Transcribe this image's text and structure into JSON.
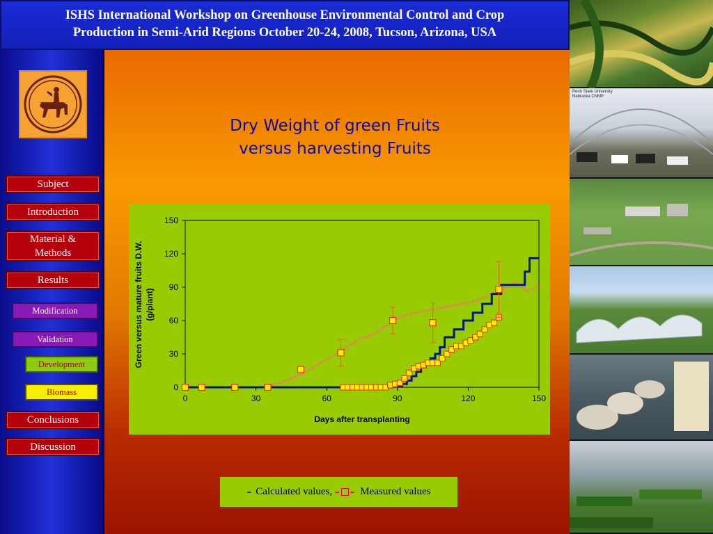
{
  "header": {
    "line1": "ISHS International Workshop on Greenhouse Environmental Control and Crop",
    "line2": "Production in Semi-Arid Regions October 20-24, 2008, Tucson, Arizona, USA"
  },
  "sidebar": {
    "items": [
      {
        "label": "Subject"
      },
      {
        "label": "Introduction"
      },
      {
        "label": "Material &"
      },
      {
        "label": "Methods"
      },
      {
        "label": "Results"
      },
      {
        "label": "Modification"
      },
      {
        "label": "Validation"
      },
      {
        "label": "Development"
      },
      {
        "label": "Biomass"
      },
      {
        "label": "Conclusions"
      },
      {
        "label": "Discussion"
      }
    ]
  },
  "slide": {
    "title_line1": "Dry Weight of green Fruits",
    "title_line2": "versus harvesting Fruits"
  },
  "legend": {
    "calculated_marker": "-",
    "calculated_label": "Calculated values,",
    "measured_marker_left": "-",
    "measured_marker_right": "-",
    "measured_label": "Measured values"
  },
  "photos": {
    "caption_line1": "Penn State University",
    "caption_line2": "Nebraska CNMP"
  },
  "colors": {
    "calculated_line": "#001a7a",
    "green_fruit_line": "#ff6688",
    "measured_marker_fill": "#ffee00",
    "measured_marker_edge": "#e03000",
    "error_bar": "#e86a20",
    "plot_bg": "#99cc00"
  },
  "chart_data": {
    "type": "line",
    "title": "",
    "xlabel": "Days after transplanting",
    "ylabel_line1": "Green versus mature fruits D.W.",
    "ylabel_line2": "(g/plant)",
    "xlim": [
      0,
      150
    ],
    "ylim": [
      0,
      150
    ],
    "xticks": [
      0,
      30,
      60,
      90,
      120,
      150
    ],
    "yticks": [
      0,
      30,
      60,
      90,
      120,
      150
    ],
    "x_tick_labels": [
      "0",
      "30",
      "60",
      "90",
      "120",
      "150"
    ],
    "y_tick_labels": [
      "0",
      "30",
      "60",
      "90",
      "120",
      "150"
    ],
    "grid": false,
    "series": [
      {
        "role": "calculated_mature",
        "style": "step",
        "x": [
          0,
          68,
          88,
          92,
          94,
          96,
          98,
          100,
          102,
          104,
          106,
          108,
          110,
          114,
          118,
          122,
          126,
          130,
          134,
          144,
          146,
          150
        ],
        "y": [
          0,
          0,
          1,
          3,
          6,
          10,
          14,
          18,
          22,
          26,
          30,
          36,
          45,
          52,
          60,
          67,
          75,
          84,
          92,
          104,
          116,
          116
        ]
      },
      {
        "role": "calculated_green",
        "style": "dotted",
        "x": [
          0,
          5,
          10,
          15,
          20,
          25,
          30,
          35,
          40,
          45,
          50,
          55,
          60,
          65,
          70,
          75,
          80,
          85,
          90,
          95,
          100,
          105,
          110,
          115,
          120,
          125,
          130,
          135,
          140,
          145,
          150
        ],
        "y": [
          0,
          0,
          0,
          0,
          0,
          0,
          0,
          1,
          4,
          8,
          13,
          19,
          25,
          31,
          38,
          44,
          48,
          55,
          62,
          66,
          68,
          70,
          72,
          74,
          76,
          79,
          84,
          88,
          95,
          86,
          92
        ]
      },
      {
        "role": "measured_green",
        "style": "marker-errorbar",
        "x": [
          0,
          7,
          21,
          35,
          49,
          66,
          88,
          105,
          133
        ],
        "y": [
          0,
          0,
          0,
          0,
          16,
          31,
          60,
          58,
          88
        ],
        "err": [
          0,
          0,
          0,
          0,
          2,
          12,
          12,
          18,
          25
        ]
      },
      {
        "role": "measured_mature",
        "style": "marker",
        "x": [
          67,
          69,
          71,
          73,
          75,
          77,
          79,
          81,
          83,
          85,
          87,
          89,
          91,
          93,
          95,
          97,
          99,
          101,
          103,
          105,
          107,
          109,
          111,
          113,
          115,
          117,
          119,
          121,
          123,
          125,
          127,
          129,
          131,
          133
        ],
        "y": [
          0,
          0,
          0,
          0,
          0,
          0,
          0,
          0,
          0,
          0,
          2,
          3,
          4,
          8,
          13,
          17,
          19,
          20,
          22,
          22,
          22,
          26,
          30,
          34,
          37,
          37,
          40,
          42,
          45,
          48,
          52,
          56,
          58,
          63
        ]
      }
    ]
  }
}
